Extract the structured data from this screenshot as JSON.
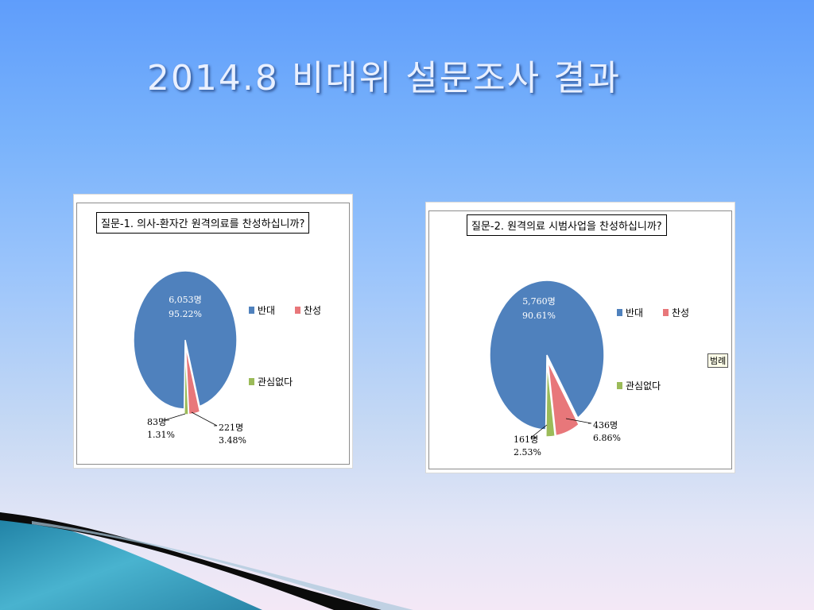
{
  "slide": {
    "title": "2014.8 비대위 설문조사 결과"
  },
  "chart_data": [
    {
      "type": "pie",
      "title": "질문-1. 의사-환자간 원격의료를 찬성하십니까?",
      "legend": [
        "반대",
        "찬성",
        "관심없다"
      ],
      "legend_placement": "right",
      "slices": [
        {
          "name": "반대",
          "count_label": "6,053명",
          "value": 95.22,
          "percent_label": "95.22%",
          "color": "#4f81bd"
        },
        {
          "name": "찬성",
          "count_label": "221명",
          "value": 3.48,
          "percent_label": "3.48%",
          "color": "#e8777a"
        },
        {
          "name": "관심없다",
          "count_label": "83명",
          "value": 1.31,
          "percent_label": "1.31%",
          "color": "#9bbb59"
        }
      ]
    },
    {
      "type": "pie",
      "title": "질문-2. 원격의료 시범사업을 찬성하십니까?",
      "legend": [
        "반대",
        "찬성",
        "관심없다"
      ],
      "legend_placement": "right",
      "legend_tooltip": "범례",
      "slices": [
        {
          "name": "반대",
          "count_label": "5,760명",
          "value": 90.61,
          "percent_label": "90.61%",
          "color": "#4f81bd"
        },
        {
          "name": "찬성",
          "count_label": "436명",
          "value": 6.86,
          "percent_label": "6.86%",
          "color": "#e8777a"
        },
        {
          "name": "관심없다",
          "count_label": "161명",
          "value": 2.53,
          "percent_label": "2.53%",
          "color": "#9bbb59"
        }
      ]
    }
  ]
}
